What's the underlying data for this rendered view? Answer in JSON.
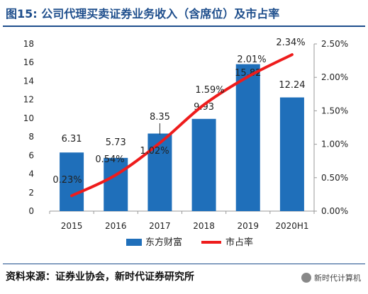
{
  "title": "图15:   公司代理买卖证券业务收入（含席位）及市占率",
  "source": "资料来源：证券业协会，新时代证券研究所",
  "watermark": "新时代计算机",
  "colors": {
    "bar": "#1f6fba",
    "line": "#ee1c1c",
    "title": "#1e4e8c"
  },
  "chart_data": {
    "type": "bar+line",
    "categories": [
      "2015",
      "2016",
      "2017",
      "2018",
      "2019",
      "2020H1"
    ],
    "series": [
      {
        "name": "东方财富",
        "type": "bar",
        "axis": "left",
        "values": [
          6.31,
          5.73,
          8.35,
          9.93,
          15.82,
          12.24
        ],
        "labels": [
          "6.31",
          "5.73",
          "8.35",
          "9.93",
          "15.82",
          "12.24"
        ]
      },
      {
        "name": "市占率",
        "type": "line",
        "axis": "right",
        "values": [
          0.23,
          0.54,
          1.02,
          1.59,
          2.01,
          2.34
        ],
        "labels": [
          "0.23%",
          "0.54%",
          "1.02%",
          "1.59%",
          "2.01%",
          "2.34%"
        ]
      }
    ],
    "y_left": {
      "range": [
        0,
        18
      ],
      "ticks": [
        "0",
        "2",
        "4",
        "6",
        "8",
        "10",
        "12",
        "14",
        "16",
        "18"
      ]
    },
    "y_right": {
      "range": [
        0,
        2.5
      ],
      "ticks": [
        "0.00%",
        "0.50%",
        "1.00%",
        "1.50%",
        "2.00%",
        "2.50%"
      ]
    },
    "grid": false,
    "legend_position": "bottom"
  }
}
